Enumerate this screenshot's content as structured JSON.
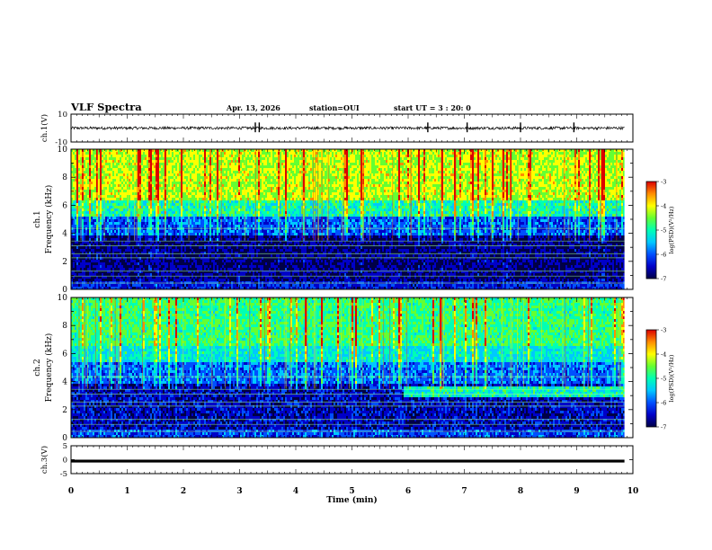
{
  "header": {
    "title": "VLF Spectra",
    "date": "Apr. 13, 2026",
    "station": "station=OUI",
    "start": "start  UT =  3 : 20: 0"
  },
  "colors": {
    "palette": [
      "#000046",
      "#0000c8",
      "#0050ff",
      "#00c8ff",
      "#00ffb4",
      "#64ff32",
      "#ffff00",
      "#ff8c00",
      "#dc0000"
    ],
    "axis": "#000000",
    "trace": "#000000"
  },
  "chart_data": [
    {
      "type": "line",
      "title": "",
      "ylabel": "ch.1(V)",
      "xlabel": "",
      "xlim": [
        0,
        10
      ],
      "ylim": [
        -10,
        10
      ],
      "yticks": [
        "10",
        "-10"
      ],
      "description_series": {
        "name": "ch.1 waveform",
        "baseline": 0,
        "amplitude": 1,
        "spikes_x": [
          3.28,
          3.35,
          6.35,
          7.05,
          8.0,
          8.95
        ]
      }
    },
    {
      "type": "heatmap",
      "title": "",
      "ylabel": "ch.1 Frequency (kHz)",
      "xlim": [
        0,
        10
      ],
      "ylim": [
        0,
        10
      ],
      "xticks": [
        0,
        1,
        2,
        3,
        4,
        5,
        6,
        7,
        8,
        9,
        10
      ],
      "yticks": [
        "0",
        "2",
        "4",
        "6",
        "8",
        "10"
      ],
      "colorbar": {
        "label": "log(PSD)(V²/Hz)",
        "range": [
          -7,
          -3
        ],
        "ticks": [
          "-3",
          "-4",
          "-5",
          "-6",
          "-7"
        ]
      },
      "bands_khz": [
        {
          "from": 0,
          "to": 0.5,
          "log_psd": -6.2
        },
        {
          "from": 0.5,
          "to": 3.8,
          "log_psd": -6.6
        },
        {
          "from": 3.8,
          "to": 5.2,
          "log_psd": -5.9
        },
        {
          "from": 5.2,
          "to": 6.3,
          "log_psd": -5.0
        },
        {
          "from": 6.3,
          "to": 10,
          "log_psd": -4.3
        }
      ],
      "data_end_min": 9.85
    },
    {
      "type": "heatmap",
      "title": "",
      "ylabel": "ch.2 Frequency (kHz)",
      "xlim": [
        0,
        10
      ],
      "ylim": [
        0,
        10
      ],
      "xticks": [
        0,
        1,
        2,
        3,
        4,
        5,
        6,
        7,
        8,
        9,
        10
      ],
      "yticks": [
        "0",
        "2",
        "4",
        "6",
        "8",
        "10"
      ],
      "colorbar": {
        "label": "log(PSD)(V²/Hz)",
        "range": [
          -7,
          -3
        ],
        "ticks": [
          "-3",
          "-4",
          "-5",
          "-6",
          "-7"
        ]
      },
      "bands_khz": [
        {
          "from": 0,
          "to": 0.5,
          "log_psd": -6.0
        },
        {
          "from": 0.5,
          "to": 3.8,
          "log_psd": -6.4
        },
        {
          "from": 3.8,
          "to": 5.3,
          "log_psd": -5.8
        },
        {
          "from": 5.3,
          "to": 6.5,
          "log_psd": -5.2
        },
        {
          "from": 6.5,
          "to": 10,
          "log_psd": -4.8
        }
      ],
      "noise_band_after_min": 5.9,
      "data_end_min": 9.85
    },
    {
      "type": "line",
      "title": "",
      "ylabel": "ch.3(V)",
      "xlabel": "Time  (min)",
      "xlim": [
        0,
        10
      ],
      "ylim": [
        -5,
        5
      ],
      "xticks": [
        "0",
        "1",
        "2",
        "3",
        "4",
        "5",
        "6",
        "7",
        "8",
        "9",
        "10"
      ],
      "yticks": [
        "5",
        "0",
        "-5"
      ],
      "series": [
        {
          "name": "ch.3",
          "x": [
            0,
            9.85
          ],
          "y": [
            -0.5,
            -0.5
          ]
        }
      ]
    }
  ]
}
